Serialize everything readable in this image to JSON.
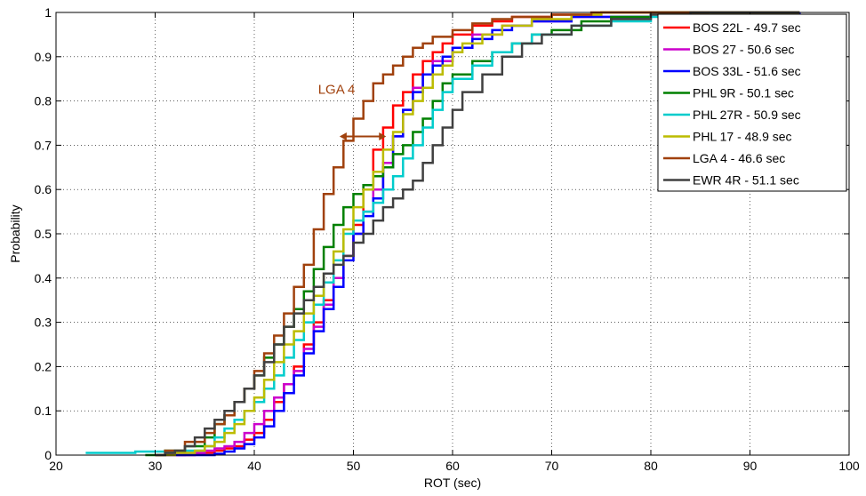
{
  "chart_data": {
    "type": "line",
    "step": true,
    "xlabel": "ROT (sec)",
    "ylabel": "Probability",
    "xlim": [
      20,
      100
    ],
    "ylim": [
      0,
      1
    ],
    "xticks": [
      20,
      30,
      40,
      50,
      60,
      70,
      80,
      90,
      100
    ],
    "yticks": [
      0,
      0.1,
      0.2,
      0.3,
      0.4,
      0.5,
      0.6,
      0.7,
      0.8,
      0.9,
      1
    ],
    "xtick_labels": [
      "20",
      "30",
      "40",
      "50",
      "60",
      "70",
      "80",
      "90",
      "100"
    ],
    "ytick_labels": [
      "0",
      "0.1",
      "0.2",
      "0.3",
      "0.4",
      "0.5",
      "0.6",
      "0.7",
      "0.8",
      "0.9",
      "1"
    ],
    "grid": true,
    "legend_position": "top-right",
    "annotations": [
      {
        "text": "LGA 4",
        "x": 48.3,
        "y": 0.8,
        "color": "#a0410d"
      },
      {
        "type": "double-arrow",
        "x_from": 48.6,
        "x_to": 53.3,
        "y": 0.72,
        "color": "#a0410d"
      }
    ],
    "series": [
      {
        "name": "BOS 22L - 49.7 sec",
        "color": "#ff0000",
        "points": [
          [
            30,
            0
          ],
          [
            34,
            0.002
          ],
          [
            35,
            0.005
          ],
          [
            36,
            0.01
          ],
          [
            37,
            0.015
          ],
          [
            38,
            0.02
          ],
          [
            39,
            0.035
          ],
          [
            40,
            0.05
          ],
          [
            41,
            0.08
          ],
          [
            42,
            0.12
          ],
          [
            43,
            0.16
          ],
          [
            44,
            0.2
          ],
          [
            45,
            0.25
          ],
          [
            46,
            0.3
          ],
          [
            47,
            0.35
          ],
          [
            48,
            0.4
          ],
          [
            49,
            0.45
          ],
          [
            50,
            0.52
          ],
          [
            51,
            0.6
          ],
          [
            52,
            0.69
          ],
          [
            53,
            0.74
          ],
          [
            54,
            0.79
          ],
          [
            55,
            0.82
          ],
          [
            56,
            0.86
          ],
          [
            57,
            0.89
          ],
          [
            58,
            0.91
          ],
          [
            59,
            0.93
          ],
          [
            60,
            0.95
          ],
          [
            62,
            0.97
          ],
          [
            64,
            0.98
          ],
          [
            66,
            0.99
          ],
          [
            70,
            0.995
          ],
          [
            75,
            1
          ]
        ]
      },
      {
        "name": "BOS 27  -  50.6 sec",
        "color": "#cc00cc",
        "points": [
          [
            30,
            0
          ],
          [
            33,
            0.005
          ],
          [
            35,
            0.01
          ],
          [
            36,
            0.015
          ],
          [
            37,
            0.02
          ],
          [
            38,
            0.03
          ],
          [
            39,
            0.05
          ],
          [
            40,
            0.07
          ],
          [
            41,
            0.1
          ],
          [
            42,
            0.13
          ],
          [
            43,
            0.16
          ],
          [
            44,
            0.19
          ],
          [
            45,
            0.24
          ],
          [
            46,
            0.29
          ],
          [
            47,
            0.34
          ],
          [
            48,
            0.4
          ],
          [
            49,
            0.45
          ],
          [
            50,
            0.5
          ],
          [
            51,
            0.55
          ],
          [
            52,
            0.6
          ],
          [
            53,
            0.66
          ],
          [
            54,
            0.72
          ],
          [
            55,
            0.78
          ],
          [
            56,
            0.83
          ],
          [
            57,
            0.86
          ],
          [
            58,
            0.89
          ],
          [
            60,
            0.92
          ],
          [
            62,
            0.95
          ],
          [
            65,
            0.97
          ],
          [
            68,
            0.98
          ],
          [
            72,
            0.99
          ],
          [
            80,
            1
          ]
        ]
      },
      {
        "name": "BOS 33L - 51.6 sec",
        "color": "#0000ff",
        "points": [
          [
            30,
            0
          ],
          [
            36,
            0.003
          ],
          [
            37,
            0.008
          ],
          [
            38,
            0.015
          ],
          [
            39,
            0.025
          ],
          [
            40,
            0.04
          ],
          [
            41,
            0.065
          ],
          [
            42,
            0.1
          ],
          [
            43,
            0.14
          ],
          [
            44,
            0.18
          ],
          [
            45,
            0.23
          ],
          [
            46,
            0.28
          ],
          [
            47,
            0.33
          ],
          [
            48,
            0.38
          ],
          [
            49,
            0.44
          ],
          [
            50,
            0.5
          ],
          [
            51,
            0.54
          ],
          [
            52,
            0.58
          ],
          [
            53,
            0.65
          ],
          [
            54,
            0.72
          ],
          [
            55,
            0.78
          ],
          [
            56,
            0.82
          ],
          [
            57,
            0.86
          ],
          [
            58,
            0.88
          ],
          [
            59,
            0.9
          ],
          [
            60,
            0.92
          ],
          [
            62,
            0.94
          ],
          [
            64,
            0.96
          ],
          [
            66,
            0.97
          ],
          [
            68,
            0.98
          ],
          [
            72,
            0.99
          ],
          [
            80,
            0.998
          ],
          [
            95,
            1
          ]
        ]
      },
      {
        "name": "PHL 9R   -  50.1 sec",
        "color": "#008000",
        "points": [
          [
            29,
            0
          ],
          [
            31,
            0.01
          ],
          [
            33,
            0.02
          ],
          [
            35,
            0.04
          ],
          [
            36,
            0.07
          ],
          [
            37,
            0.09
          ],
          [
            38,
            0.12
          ],
          [
            39,
            0.15
          ],
          [
            40,
            0.18
          ],
          [
            41,
            0.22
          ],
          [
            42,
            0.25
          ],
          [
            43,
            0.29
          ],
          [
            44,
            0.33
          ],
          [
            45,
            0.37
          ],
          [
            46,
            0.42
          ],
          [
            47,
            0.47
          ],
          [
            48,
            0.52
          ],
          [
            49,
            0.56
          ],
          [
            50,
            0.59
          ],
          [
            51,
            0.61
          ],
          [
            52,
            0.63
          ],
          [
            53,
            0.65
          ],
          [
            54,
            0.68
          ],
          [
            55,
            0.7
          ],
          [
            56,
            0.73
          ],
          [
            57,
            0.76
          ],
          [
            58,
            0.8
          ],
          [
            59,
            0.84
          ],
          [
            60,
            0.86
          ],
          [
            62,
            0.89
          ],
          [
            64,
            0.91
          ],
          [
            66,
            0.93
          ],
          [
            68,
            0.95
          ],
          [
            70,
            0.96
          ],
          [
            73,
            0.98
          ],
          [
            76,
            0.99
          ],
          [
            80,
            1
          ]
        ]
      },
      {
        "name": "PHL 27R  - 50.9 sec",
        "color": "#00cccc",
        "points": [
          [
            23,
            0.005
          ],
          [
            28,
            0.008
          ],
          [
            33,
            0.01
          ],
          [
            35,
            0.02
          ],
          [
            36,
            0.04
          ],
          [
            37,
            0.06
          ],
          [
            38,
            0.08
          ],
          [
            39,
            0.1
          ],
          [
            40,
            0.12
          ],
          [
            41,
            0.15
          ],
          [
            42,
            0.18
          ],
          [
            43,
            0.22
          ],
          [
            44,
            0.26
          ],
          [
            45,
            0.3
          ],
          [
            46,
            0.34
          ],
          [
            47,
            0.39
          ],
          [
            48,
            0.44
          ],
          [
            49,
            0.5
          ],
          [
            50,
            0.53
          ],
          [
            51,
            0.55
          ],
          [
            52,
            0.57
          ],
          [
            53,
            0.6
          ],
          [
            54,
            0.63
          ],
          [
            55,
            0.67
          ],
          [
            56,
            0.7
          ],
          [
            57,
            0.74
          ],
          [
            58,
            0.78
          ],
          [
            59,
            0.82
          ],
          [
            60,
            0.85
          ],
          [
            62,
            0.88
          ],
          [
            64,
            0.91
          ],
          [
            66,
            0.93
          ],
          [
            68,
            0.95
          ],
          [
            72,
            0.97
          ],
          [
            76,
            0.98
          ],
          [
            80,
            0.99
          ],
          [
            86,
            1
          ]
        ]
      },
      {
        "name": "PHL 17   -  48.9 sec",
        "color": "#bcbc00",
        "points": [
          [
            30,
            0
          ],
          [
            32,
            0.005
          ],
          [
            34,
            0.01
          ],
          [
            35,
            0.02
          ],
          [
            36,
            0.03
          ],
          [
            37,
            0.05
          ],
          [
            38,
            0.07
          ],
          [
            39,
            0.1
          ],
          [
            40,
            0.13
          ],
          [
            41,
            0.17
          ],
          [
            42,
            0.21
          ],
          [
            43,
            0.25
          ],
          [
            44,
            0.28
          ],
          [
            45,
            0.32
          ],
          [
            46,
            0.36
          ],
          [
            47,
            0.41
          ],
          [
            48,
            0.46
          ],
          [
            49,
            0.51
          ],
          [
            50,
            0.56
          ],
          [
            51,
            0.6
          ],
          [
            52,
            0.64
          ],
          [
            53,
            0.69
          ],
          [
            54,
            0.73
          ],
          [
            55,
            0.77
          ],
          [
            56,
            0.8
          ],
          [
            57,
            0.83
          ],
          [
            58,
            0.86
          ],
          [
            59,
            0.88
          ],
          [
            60,
            0.91
          ],
          [
            61,
            0.93
          ],
          [
            63,
            0.95
          ],
          [
            65,
            0.97
          ],
          [
            68,
            0.985
          ],
          [
            72,
            0.995
          ],
          [
            75,
            1
          ]
        ]
      },
      {
        "name": "LGA 4    -    46.6 sec",
        "color": "#a0410d",
        "points": [
          [
            30,
            0
          ],
          [
            31,
            0.01
          ],
          [
            33,
            0.03
          ],
          [
            35,
            0.05
          ],
          [
            36,
            0.07
          ],
          [
            37,
            0.09
          ],
          [
            38,
            0.12
          ],
          [
            39,
            0.15
          ],
          [
            40,
            0.19
          ],
          [
            41,
            0.23
          ],
          [
            42,
            0.27
          ],
          [
            43,
            0.32
          ],
          [
            44,
            0.38
          ],
          [
            45,
            0.43
          ],
          [
            46,
            0.51
          ],
          [
            47,
            0.59
          ],
          [
            48,
            0.65
          ],
          [
            49,
            0.71
          ],
          [
            50,
            0.76
          ],
          [
            51,
            0.8
          ],
          [
            52,
            0.84
          ],
          [
            53,
            0.86
          ],
          [
            54,
            0.88
          ],
          [
            55,
            0.9
          ],
          [
            56,
            0.92
          ],
          [
            57,
            0.93
          ],
          [
            58,
            0.945
          ],
          [
            60,
            0.96
          ],
          [
            62,
            0.975
          ],
          [
            64,
            0.985
          ],
          [
            66,
            0.99
          ],
          [
            70,
            0.995
          ],
          [
            74,
            1
          ]
        ]
      },
      {
        "name": "EWR 4R   - 51.1 sec",
        "color": "#404040",
        "points": [
          [
            30,
            0
          ],
          [
            31,
            0.005
          ],
          [
            32,
            0.01
          ],
          [
            33,
            0.02
          ],
          [
            34,
            0.04
          ],
          [
            35,
            0.06
          ],
          [
            36,
            0.08
          ],
          [
            37,
            0.1
          ],
          [
            38,
            0.12
          ],
          [
            39,
            0.15
          ],
          [
            40,
            0.18
          ],
          [
            41,
            0.21
          ],
          [
            42,
            0.25
          ],
          [
            43,
            0.29
          ],
          [
            44,
            0.32
          ],
          [
            45,
            0.35
          ],
          [
            46,
            0.38
          ],
          [
            47,
            0.41
          ],
          [
            48,
            0.43
          ],
          [
            49,
            0.45
          ],
          [
            50,
            0.48
          ],
          [
            51,
            0.5
          ],
          [
            52,
            0.53
          ],
          [
            53,
            0.56
          ],
          [
            54,
            0.58
          ],
          [
            55,
            0.6
          ],
          [
            56,
            0.62
          ],
          [
            57,
            0.66
          ],
          [
            58,
            0.7
          ],
          [
            59,
            0.74
          ],
          [
            60,
            0.78
          ],
          [
            61,
            0.82
          ],
          [
            63,
            0.86
          ],
          [
            65,
            0.9
          ],
          [
            67,
            0.93
          ],
          [
            69,
            0.95
          ],
          [
            72,
            0.97
          ],
          [
            76,
            0.985
          ],
          [
            80,
            0.995
          ],
          [
            84,
            1
          ]
        ]
      }
    ]
  }
}
